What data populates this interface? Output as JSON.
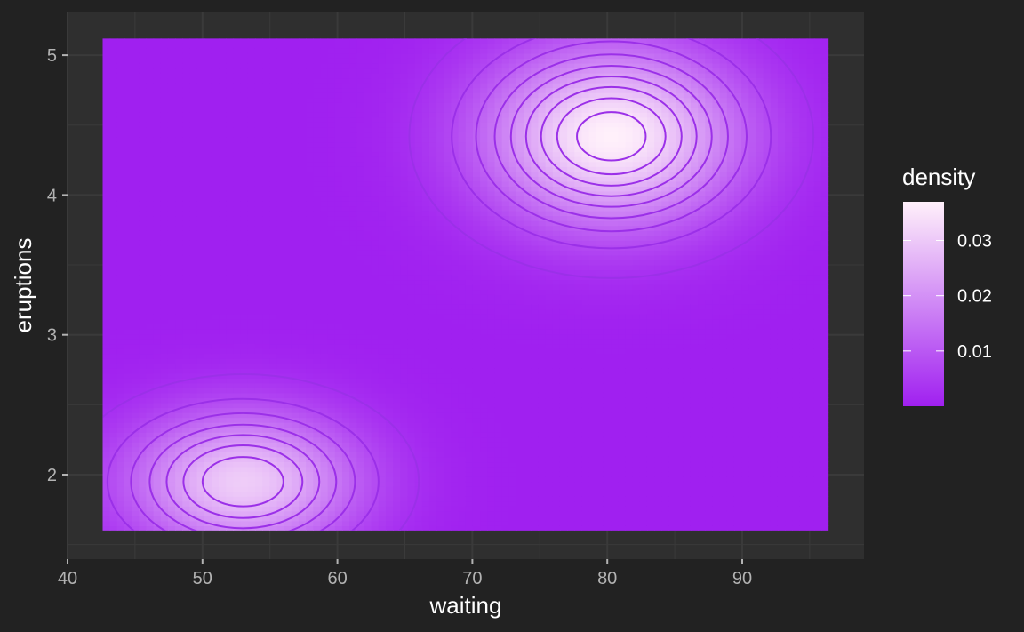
{
  "chart_data": {
    "type": "heatmap",
    "title": "",
    "xlabel": "waiting",
    "ylabel": "eruptions",
    "x_ticks": [
      40,
      50,
      60,
      70,
      80,
      90
    ],
    "y_ticks": [
      2,
      3,
      4,
      5
    ],
    "xlim": [
      40,
      99
    ],
    "ylim": [
      1.5,
      5.4
    ],
    "data_extent": {
      "x": [
        42.6,
        96.4
      ],
      "y": [
        1.6,
        5.12
      ]
    },
    "grid": true,
    "theme": "dark",
    "fill_scale": {
      "name": "density",
      "low_color": "#a020f0",
      "high_color": "#fff0fa",
      "range": [
        0,
        0.037
      ],
      "breaks": [
        0.01,
        0.02,
        0.03
      ]
    },
    "density_peaks": [
      {
        "waiting": 80.3,
        "eruptions": 4.42,
        "density": 0.037
      },
      {
        "waiting": 53,
        "eruptions": 1.95,
        "density": 0.03
      }
    ],
    "contour_color": "#9b30e8",
    "legend_position": "right",
    "grid_color": "#3a3a3a",
    "panel_color": "#2f2f2f"
  }
}
